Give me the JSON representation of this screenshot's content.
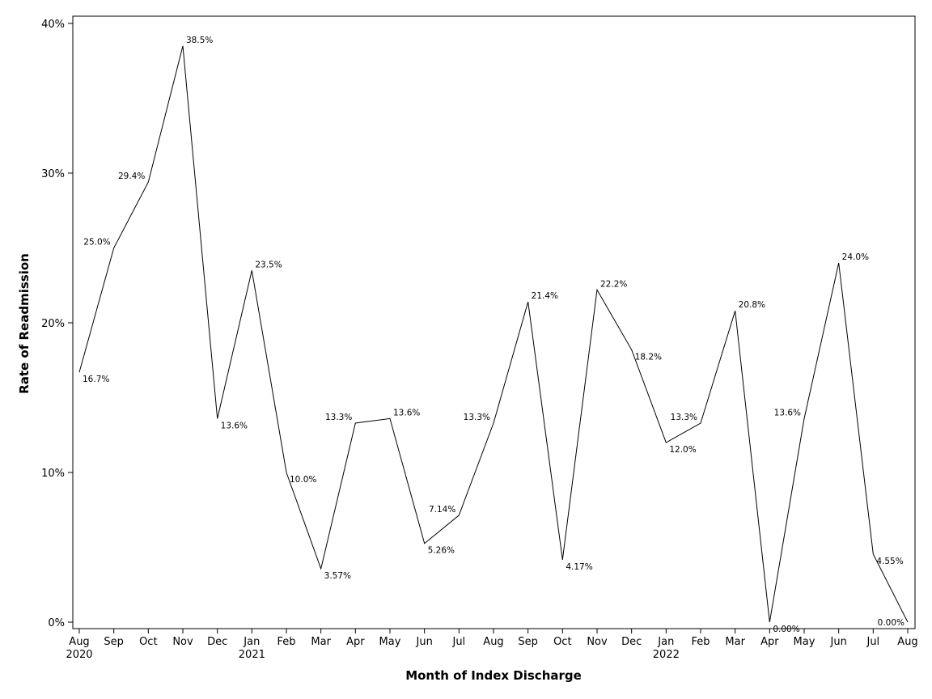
{
  "chart_data": {
    "type": "line",
    "xlabel": "Month of Index Discharge",
    "ylabel": "Rate of Readmission",
    "ylim": [
      0,
      40
    ],
    "yticks": [
      "0%",
      "10%",
      "20%",
      "30%",
      "40%"
    ],
    "grid": false,
    "legend": "none",
    "categories": [
      {
        "month": "Aug",
        "year": "2020"
      },
      {
        "month": "Sep",
        "year": ""
      },
      {
        "month": "Oct",
        "year": ""
      },
      {
        "month": "Nov",
        "year": ""
      },
      {
        "month": "Dec",
        "year": ""
      },
      {
        "month": "Jan",
        "year": "2021"
      },
      {
        "month": "Feb",
        "year": ""
      },
      {
        "month": "Mar",
        "year": ""
      },
      {
        "month": "Apr",
        "year": ""
      },
      {
        "month": "May",
        "year": ""
      },
      {
        "month": "Jun",
        "year": ""
      },
      {
        "month": "Jul",
        "year": ""
      },
      {
        "month": "Aug",
        "year": ""
      },
      {
        "month": "Sep",
        "year": ""
      },
      {
        "month": "Oct",
        "year": ""
      },
      {
        "month": "Nov",
        "year": ""
      },
      {
        "month": "Dec",
        "year": ""
      },
      {
        "month": "Jan",
        "year": "2022"
      },
      {
        "month": "Feb",
        "year": ""
      },
      {
        "month": "Mar",
        "year": ""
      },
      {
        "month": "Apr",
        "year": ""
      },
      {
        "month": "May",
        "year": ""
      },
      {
        "month": "Jun",
        "year": ""
      },
      {
        "month": "Jul",
        "year": ""
      },
      {
        "month": "Aug",
        "year": ""
      }
    ],
    "values": [
      16.7,
      25.0,
      29.4,
      38.5,
      13.6,
      23.5,
      10.0,
      3.57,
      13.3,
      13.6,
      5.26,
      7.14,
      13.3,
      21.4,
      4.17,
      22.2,
      18.2,
      12.0,
      13.3,
      20.8,
      0.0,
      13.6,
      24.0,
      4.55,
      0.0
    ],
    "data_labels": [
      "16.7%",
      "25.0%",
      "29.4%",
      "38.5%",
      "13.6%",
      "23.5%",
      "10.0%",
      "3.57%",
      "13.3%",
      "13.6%",
      "5.26%",
      "7.14%",
      "13.3%",
      "21.4%",
      "4.17%",
      "22.2%",
      "18.2%",
      "12.0%",
      "13.3%",
      "20.8%",
      "0.00%",
      "13.6%",
      "24.0%",
      "4.55%",
      "0.00%"
    ],
    "line_color": "#000000"
  }
}
